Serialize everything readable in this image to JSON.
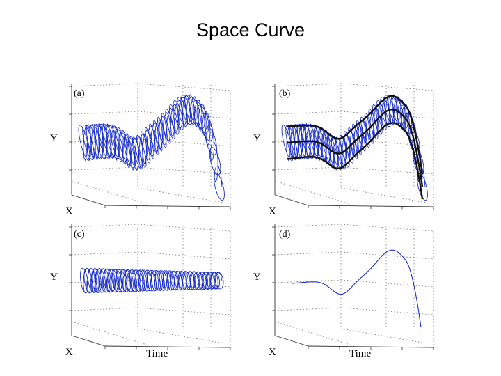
{
  "slide": {
    "title": "Space Curve"
  },
  "panels": [
    {
      "id": "a",
      "label": "(a)",
      "y_axis": "Y",
      "x_axis": "X",
      "time_axis": "",
      "style": "helix"
    },
    {
      "id": "b",
      "label": "(b)",
      "y_axis": "Y",
      "x_axis": "X",
      "time_axis": "",
      "style": "helix-envelope"
    },
    {
      "id": "c",
      "label": "(c)",
      "y_axis": "Y",
      "x_axis": "X",
      "time_axis": "Time",
      "style": "helix-flat"
    },
    {
      "id": "d",
      "label": "(d)",
      "y_axis": "Y",
      "x_axis": "X",
      "time_axis": "Time",
      "style": "curve"
    }
  ],
  "colors": {
    "curve": "#1a2ecc",
    "envelope": "#111111",
    "grid": "#777777"
  }
}
